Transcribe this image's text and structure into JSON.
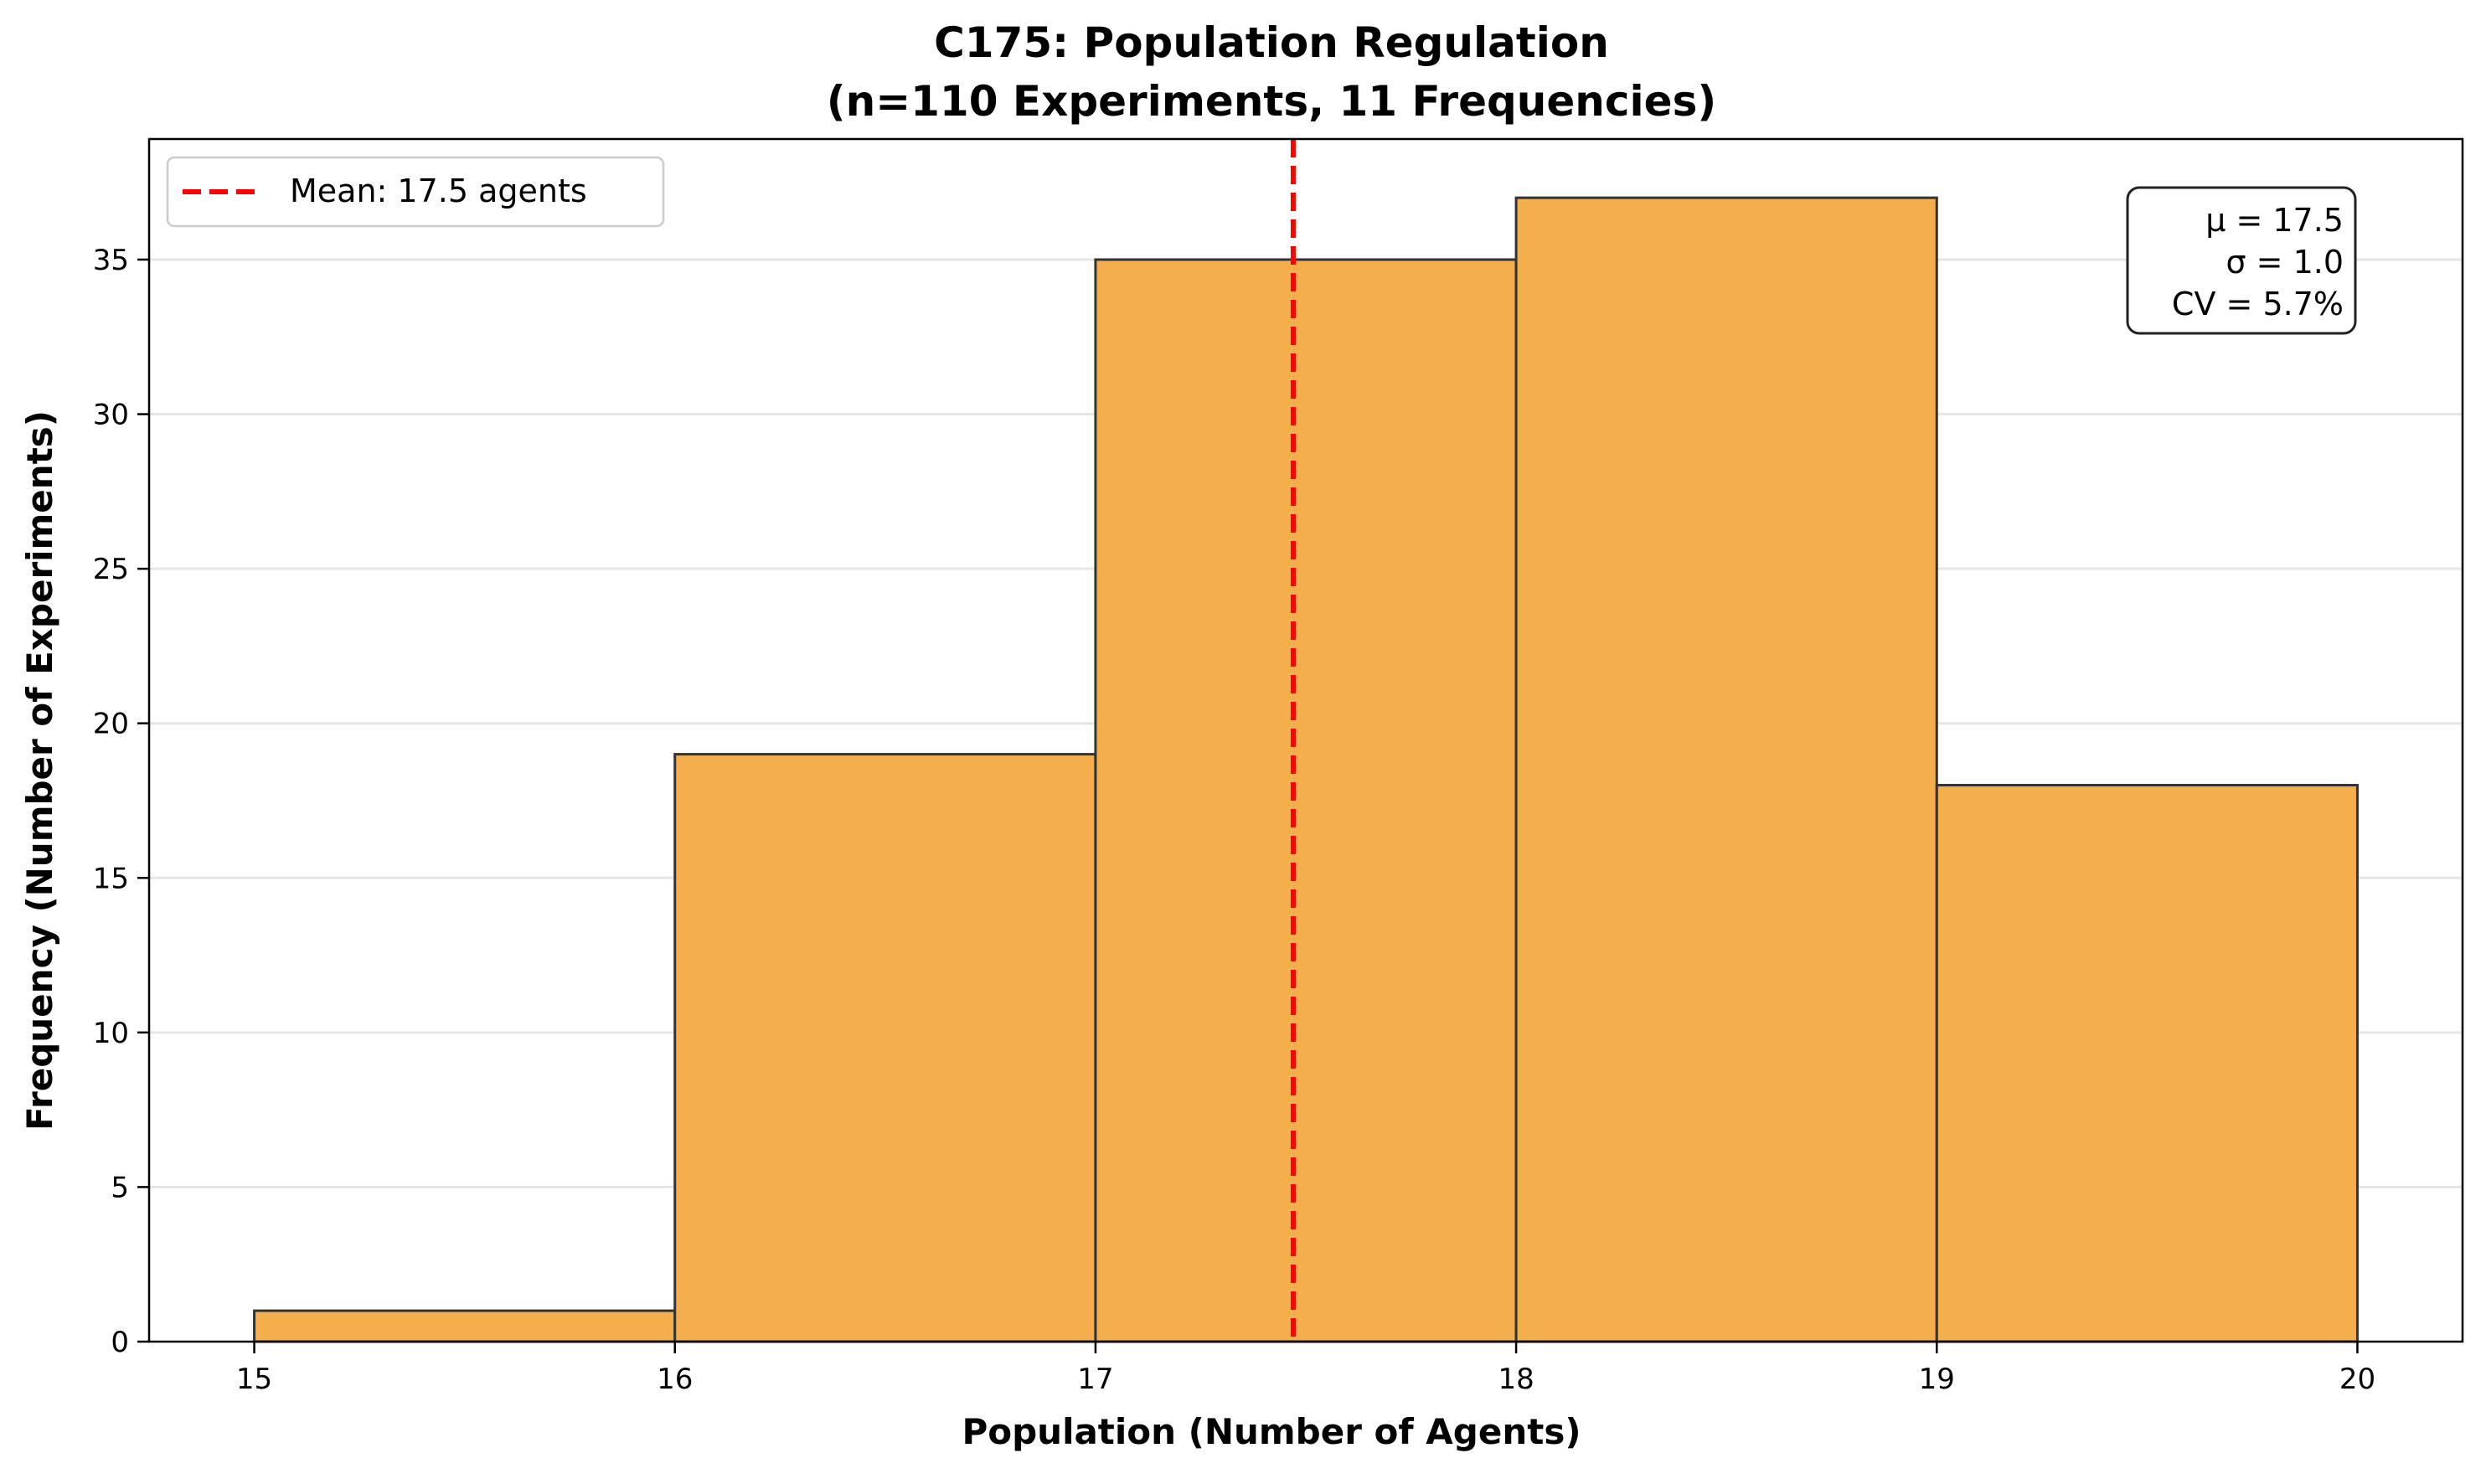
{
  "chart_data": {
    "type": "bar",
    "title": "C175: Population Regulation",
    "subtitle": "(n=110 Experiments, 11 Frequencies)",
    "xlabel": "Population (Number of Agents)",
    "ylabel": "Frequency (Number of Experiments)",
    "bins": [
      {
        "start": 15,
        "end": 16,
        "count": 1
      },
      {
        "start": 16,
        "end": 17,
        "count": 19
      },
      {
        "start": 17,
        "end": 18,
        "count": 35
      },
      {
        "start": 18,
        "end": 19,
        "count": 37
      },
      {
        "start": 19,
        "end": 20,
        "count": 18
      }
    ],
    "xlim": [
      14.75,
      20.25
    ],
    "ylim": [
      0,
      38.9
    ],
    "xticks": [
      15,
      16,
      17,
      18,
      19,
      20
    ],
    "yticks": [
      0,
      5,
      10,
      15,
      20,
      25,
      30,
      35
    ],
    "grid": "horizontal",
    "mean_line": {
      "x": 17.47,
      "label": "Mean: 17.5 agents",
      "color": "#ff0000"
    },
    "legend_position": "top-left",
    "stats_box": {
      "position": "top-right",
      "lines": [
        "μ = 17.5",
        "σ = 1.0",
        "CV = 5.7%"
      ]
    },
    "colors": {
      "bar_fill": "#f4ae4c",
      "bar_edge": "#333333",
      "grid": "#e6e6e6"
    }
  }
}
